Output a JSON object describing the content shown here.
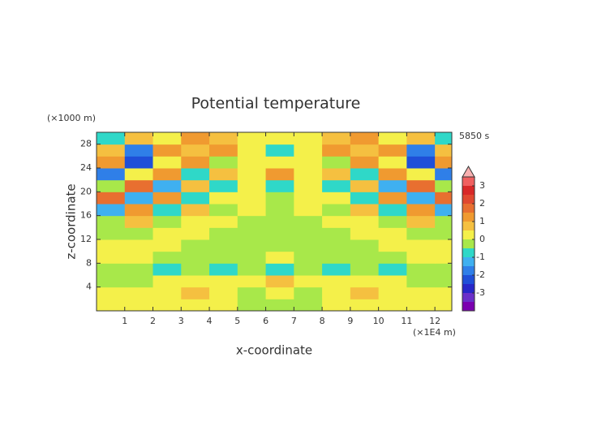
{
  "chart_data": {
    "type": "heatmap",
    "title": "Potential temperature",
    "y_unit": "(×1000 m)",
    "x_unit": "(×1E4 m)",
    "time_label": "5850 s",
    "xlabel": "x-coordinate",
    "ylabel": "z-coordinate",
    "xlim": [
      0,
      12.6
    ],
    "ylim": [
      0,
      30
    ],
    "xticks": [
      1,
      2,
      3,
      4,
      5,
      6,
      7,
      8,
      9,
      10,
      11,
      12
    ],
    "yticks": [
      4,
      8,
      12,
      16,
      20,
      24,
      28
    ],
    "x": [
      0.5,
      1.5,
      2.5,
      3.5,
      4.5,
      5.5,
      6.5,
      7.5,
      8.5,
      9.5,
      10.5,
      11.5,
      12.5
    ],
    "z": [
      1,
      3,
      5,
      7,
      9,
      11,
      13,
      15,
      17,
      19,
      21,
      23,
      25,
      27,
      29
    ],
    "values": [
      [
        0.3,
        0.3,
        0.3,
        0.3,
        0.3,
        -0.2,
        -0.2,
        -0.2,
        0.3,
        0.3,
        0.3,
        0.3,
        0.3
      ],
      [
        0.3,
        0.3,
        0.3,
        0.6,
        0.2,
        -0.3,
        0.3,
        -0.3,
        0.2,
        0.6,
        0.3,
        0.3,
        0.3
      ],
      [
        -0.2,
        -0.2,
        0.3,
        0.3,
        0.3,
        0.3,
        0.6,
        0.3,
        0.3,
        0.3,
        0.3,
        -0.2,
        -0.2
      ],
      [
        -0.2,
        -0.2,
        -0.6,
        -0.2,
        -0.6,
        -0.2,
        -0.6,
        -0.2,
        -0.6,
        -0.2,
        -0.6,
        -0.2,
        -0.2
      ],
      [
        0.3,
        0.3,
        -0.2,
        -0.2,
        -0.2,
        -0.2,
        0.3,
        -0.2,
        -0.2,
        -0.2,
        -0.2,
        0.3,
        0.3
      ],
      [
        0.3,
        0.3,
        0.3,
        -0.2,
        -0.2,
        -0.2,
        -0.2,
        -0.2,
        -0.2,
        -0.2,
        0.3,
        0.3,
        0.3
      ],
      [
        -0.2,
        -0.2,
        0.3,
        0.3,
        -0.2,
        -0.2,
        -0.2,
        -0.2,
        -0.2,
        0.3,
        0.3,
        -0.2,
        -0.2
      ],
      [
        -0.2,
        0.6,
        -0.3,
        0.3,
        0.3,
        -0.2,
        -0.2,
        -0.2,
        0.3,
        0.3,
        -0.3,
        0.6,
        -0.2
      ],
      [
        -1.2,
        1.2,
        -0.8,
        0.8,
        -0.2,
        0.3,
        -0.2,
        0.3,
        -0.2,
        0.8,
        -0.8,
        1.2,
        -1.2
      ],
      [
        1.8,
        -1.2,
        1.2,
        -0.8,
        0.3,
        0.3,
        -0.2,
        0.3,
        0.3,
        -0.8,
        1.2,
        -1.2,
        1.8
      ],
      [
        -0.2,
        1.6,
        -1.2,
        0.8,
        -0.6,
        0.3,
        -0.8,
        0.3,
        -0.6,
        0.8,
        -1.2,
        1.6,
        -0.2
      ],
      [
        -1.8,
        0.3,
        1.2,
        -0.8,
        0.6,
        0.3,
        1.2,
        0.3,
        0.6,
        -0.8,
        1.2,
        0.3,
        -1.8
      ],
      [
        1.2,
        -2.2,
        0.3,
        1.2,
        -0.3,
        0.3,
        0.3,
        0.3,
        -0.3,
        1.2,
        0.3,
        -2.2,
        1.2
      ],
      [
        0.8,
        -1.6,
        1.2,
        0.8,
        1.2,
        0.3,
        -0.6,
        0.3,
        1.2,
        0.8,
        1.2,
        -1.6,
        0.8
      ],
      [
        -0.8,
        0.8,
        0.3,
        1.2,
        0.6,
        0.3,
        0.3,
        0.3,
        0.6,
        1.2,
        0.3,
        0.8,
        -0.8
      ]
    ],
    "levels": [
      -4,
      -3.5,
      -3,
      -2.5,
      -2,
      -1.5,
      -1,
      -0.5,
      0,
      0.5,
      1,
      1.5,
      2,
      2.5,
      3,
      3.5
    ],
    "colors": [
      "#7b00b0",
      "#6a2fc9",
      "#2727c9",
      "#1f4fd8",
      "#2f7fe8",
      "#3fb0f0",
      "#2fd8c8",
      "#a8e84a",
      "#f4f04a",
      "#f5c040",
      "#f09a30",
      "#e86f30",
      "#e04830",
      "#d82828",
      "#f06060"
    ],
    "over_color": "#f8b0b0",
    "colorbar_ticks": [
      -3,
      -2,
      -1,
      0,
      1,
      2,
      3
    ]
  }
}
